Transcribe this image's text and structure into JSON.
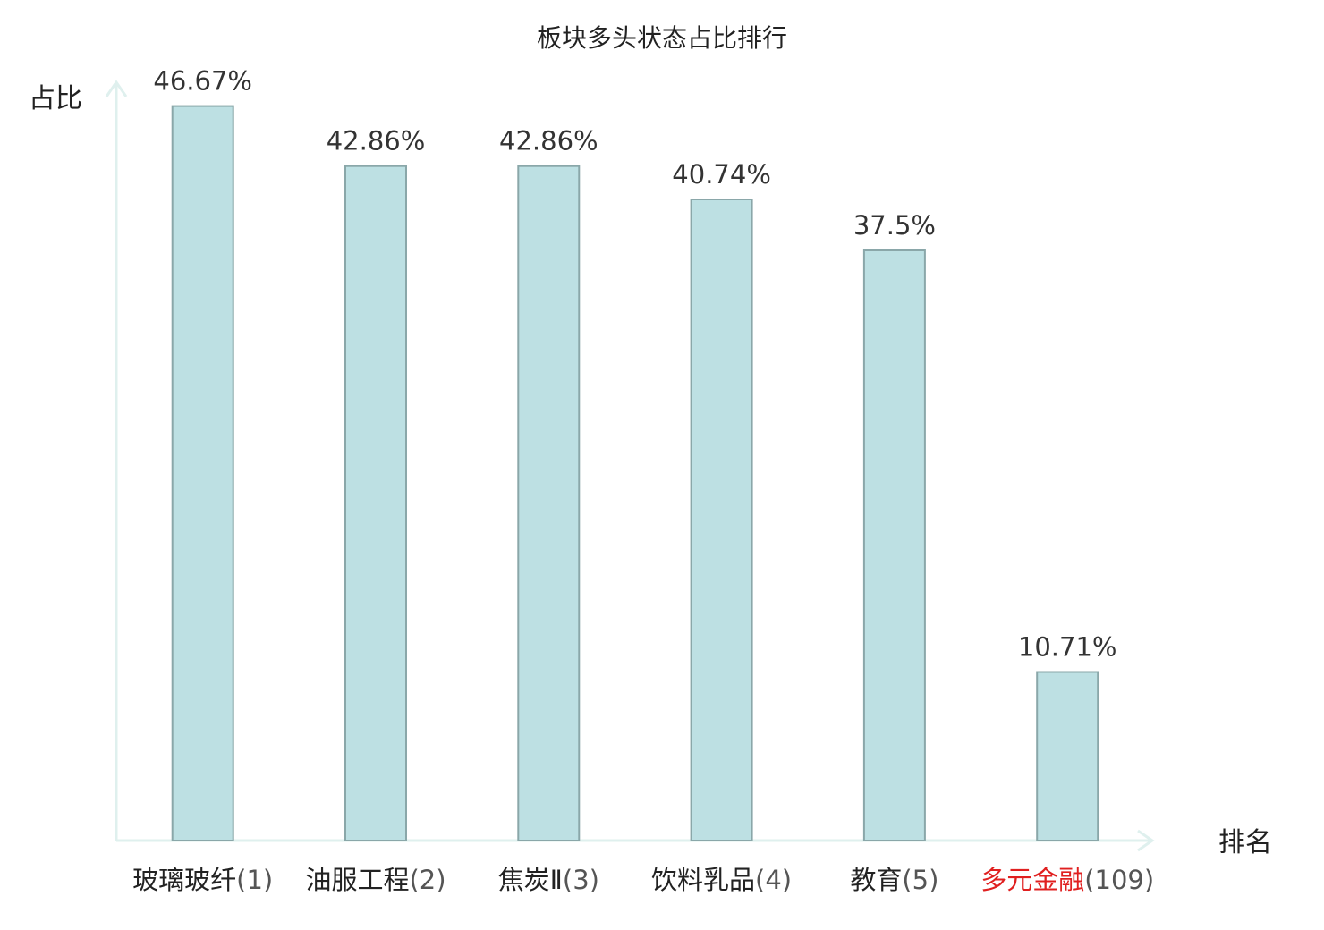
{
  "chart_data": {
    "type": "bar",
    "title": "板块多头状态占比排行",
    "ylabel": "占比",
    "xlabel": "排名",
    "ylim": [
      0,
      50
    ],
    "grid": false,
    "categories": [
      "玻璃玻纤",
      "油服工程",
      "焦炭Ⅱ",
      "饮料乳品",
      "教育",
      "多元金融"
    ],
    "ranks": [
      "(1)",
      "(2)",
      "(3)",
      "(4)",
      "(5)",
      "(109)"
    ],
    "values": [
      46.67,
      42.86,
      42.86,
      40.74,
      37.5,
      10.71
    ],
    "value_labels": [
      "46.67%",
      "42.86%",
      "42.86%",
      "40.74%",
      "37.5%",
      "10.71%"
    ],
    "highlight_index": 5,
    "colors": {
      "bar_fill": "#bde0e3",
      "bar_stroke": "#8aa7a9",
      "axis": "#dff0ee",
      "highlight_text": "#e02020",
      "text": "#222222"
    }
  }
}
